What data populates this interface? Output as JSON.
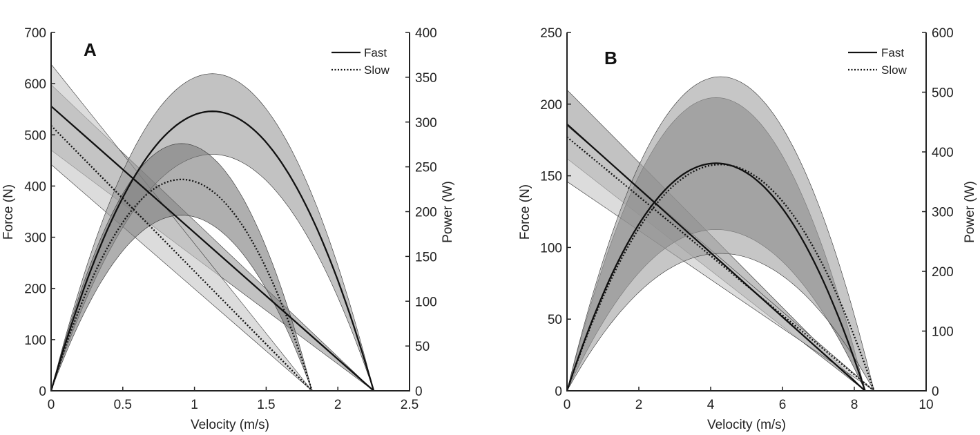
{
  "chart_data": [
    {
      "type": "line",
      "panel_label": "A",
      "xlabel": "Velocity (m/s)",
      "ylabel": "Force (N)",
      "ylabel_right": "Power (W)",
      "xlim": [
        0,
        2.5
      ],
      "ylim": [
        0,
        700
      ],
      "ylim_right": [
        0,
        400
      ],
      "xticks": [
        "0",
        "0.5",
        "1",
        "1.5",
        "2",
        "2.5"
      ],
      "xtick_values": [
        0,
        0.5,
        1,
        1.5,
        2,
        2.5
      ],
      "yticks": [
        "0",
        "100",
        "200",
        "300",
        "400",
        "500",
        "600",
        "700"
      ],
      "ytick_values": [
        0,
        100,
        200,
        300,
        400,
        500,
        600,
        700
      ],
      "yticks_right": [
        "0",
        "50",
        "100",
        "150",
        "200",
        "250",
        "300",
        "350",
        "400"
      ],
      "ytick_right_values": [
        0,
        50,
        100,
        150,
        200,
        250,
        300,
        350,
        400
      ],
      "legend": {
        "position": "top-right",
        "entries": [
          {
            "label": "Fast",
            "style": "solid"
          },
          {
            "label": "Slow",
            "style": "dotted"
          }
        ]
      },
      "series": [
        {
          "name": "Fast",
          "kind": "force",
          "style": "solid",
          "F0": 556,
          "V0": 2.25,
          "band_F0": [
            470,
            598
          ],
          "band_color": "#9a9a9a"
        },
        {
          "name": "Slow",
          "kind": "force",
          "style": "dotted",
          "F0": 518,
          "V0": 1.82,
          "band_F0": [
            442,
            638
          ],
          "band_color": "#c4c4c4"
        },
        {
          "name": "Fast",
          "kind": "power",
          "style": "solid",
          "Pmax": 312,
          "V0": 2.25,
          "band_Pmax": [
            264,
            354
          ],
          "band_color": "#9a9a9a"
        },
        {
          "name": "Slow",
          "kind": "power",
          "style": "dotted",
          "Pmax": 236,
          "V0": 1.82,
          "band_Pmax": [
            196,
            276
          ],
          "band_color": "#7a7a7a"
        }
      ]
    },
    {
      "type": "line",
      "panel_label": "B",
      "xlabel": "Velocity (m/s)",
      "ylabel": "Force (N)",
      "ylabel_right": "Power (W)",
      "xlim": [
        0,
        10
      ],
      "ylim": [
        0,
        250
      ],
      "ylim_right": [
        0,
        600
      ],
      "xticks": [
        "0",
        "2",
        "4",
        "6",
        "8",
        "10"
      ],
      "xtick_values": [
        0,
        2,
        4,
        6,
        8,
        10
      ],
      "yticks": [
        "0",
        "50",
        "100",
        "150",
        "200",
        "250"
      ],
      "ytick_values": [
        0,
        50,
        100,
        150,
        200,
        250
      ],
      "yticks_right": [
        "0",
        "100",
        "200",
        "300",
        "400",
        "500",
        "600"
      ],
      "ytick_right_values": [
        0,
        100,
        200,
        300,
        400,
        500,
        600
      ],
      "legend": {
        "position": "top-right",
        "entries": [
          {
            "label": "Fast",
            "style": "solid"
          },
          {
            "label": "Slow",
            "style": "dotted"
          }
        ]
      },
      "series": [
        {
          "name": "Fast",
          "kind": "force",
          "style": "solid",
          "F0": 186,
          "V0": 8.3,
          "band_F0": [
            162,
            210
          ],
          "band_color": "#9a9a9a"
        },
        {
          "name": "Slow",
          "kind": "force",
          "style": "dotted",
          "F0": 177,
          "V0": 8.55,
          "band_F0": [
            146,
            185
          ],
          "band_color": "#c4c4c4"
        },
        {
          "name": "Fast",
          "kind": "power",
          "style": "solid",
          "Pmax": 381,
          "V0": 8.3,
          "band_Pmax": [
            270,
            491
          ],
          "band_color": "#6e6e6e"
        },
        {
          "name": "Slow",
          "kind": "power",
          "style": "dotted",
          "Pmax": 379,
          "V0": 8.55,
          "band_Pmax": [
            230,
            526
          ],
          "band_color": "#a0a0a0"
        }
      ]
    }
  ]
}
